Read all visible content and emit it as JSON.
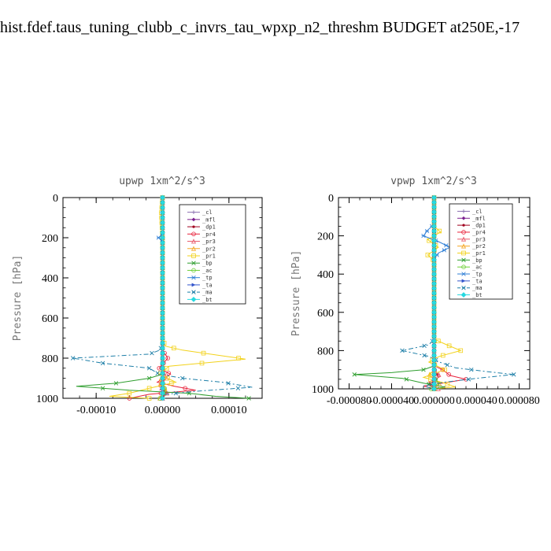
{
  "page": {
    "title": "hist.fdef.taus_tuning_clubb_c_invrs_tau_wpxp_n2_threshm  BUDGET at250E,-17"
  },
  "chart_data": [
    {
      "type": "line",
      "title": "upwp   1xm^2/s^3",
      "ylabel": "Pressure [hPa]",
      "xlabel": "",
      "ylim": [
        1000,
        0
      ],
      "y_ticks": [
        "0",
        "200",
        "400",
        "600",
        "800",
        "1000"
      ],
      "xlim": [
        -0.00015,
        0.00015
      ],
      "x_ticks": [
        {
          "value": -0.0001,
          "label": "-0.00010"
        },
        {
          "value": 0,
          "label": "0.00000"
        },
        {
          "value": 0.0001,
          "label": "0.00010"
        }
      ],
      "legend_position": "top-right",
      "series": [
        {
          "name": "_cl",
          "color": "#8a6fb0",
          "marker": "cross",
          "dash": "",
          "points": [
            [
              0,
              0
            ],
            [
              0,
              1000
            ]
          ]
        },
        {
          "name": "_mfl",
          "color": "#7b1f8f",
          "marker": "diamond",
          "dash": "",
          "points": [
            [
              0,
              0
            ],
            [
              0,
              1000
            ]
          ]
        },
        {
          "name": "_dp1",
          "color": "#a0001e",
          "marker": "dot",
          "dash": "",
          "points": [
            [
              0,
              0
            ],
            [
              0,
              900
            ],
            [
              -2e-06,
              940
            ],
            [
              4e-06,
              970
            ],
            [
              0,
              1000
            ]
          ]
        },
        {
          "name": "_pr4",
          "color": "#e8233c",
          "marker": "circle",
          "dash": "",
          "points": [
            [
              0,
              0
            ],
            [
              0,
              760
            ],
            [
              8e-06,
              800
            ],
            [
              -5e-06,
              850
            ],
            [
              1.2e-05,
              880
            ],
            [
              -8e-06,
              920
            ],
            [
              1.8e-05,
              940
            ],
            [
              5e-05,
              960
            ],
            [
              -2e-05,
              980
            ],
            [
              -5e-05,
              1000
            ]
          ]
        },
        {
          "name": "_pr3",
          "color": "#e85a6a",
          "marker": "triangle",
          "dash": "",
          "points": [
            [
              0,
              0
            ],
            [
              0,
              860
            ],
            [
              6e-06,
              900
            ],
            [
              -6e-06,
              940
            ],
            [
              8e-06,
              970
            ],
            [
              0,
              1000
            ]
          ]
        },
        {
          "name": "_pr2",
          "color": "#f5a623",
          "marker": "triangle",
          "dash": "",
          "points": [
            [
              0,
              0
            ],
            [
              0,
              880
            ],
            [
              -4e-06,
              920
            ],
            [
              6e-06,
              960
            ],
            [
              -4e-06,
              1000
            ]
          ]
        },
        {
          "name": "_pr1",
          "color": "#f2d21b",
          "marker": "square",
          "dash": "",
          "points": [
            [
              0,
              0
            ],
            [
              -2e-06,
              80
            ],
            [
              0,
              200
            ],
            [
              0,
              700
            ],
            [
              4e-06,
              740
            ],
            [
              3e-05,
              760
            ],
            [
              0.000125,
              805
            ],
            [
              1e-05,
              840
            ],
            [
              -5e-06,
              880
            ],
            [
              2e-05,
              920
            ],
            [
              -2e-05,
              950
            ],
            [
              -5e-05,
              975
            ],
            [
              -8e-05,
              990
            ],
            [
              -2e-05,
              1000
            ]
          ]
        },
        {
          "name": "_bp",
          "color": "#2e9e2e",
          "marker": "xcross",
          "dash": "",
          "points": [
            [
              0,
              0
            ],
            [
              0,
              880
            ],
            [
              -2e-05,
              900
            ],
            [
              -7e-05,
              925
            ],
            [
              -0.00013,
              940
            ],
            [
              -5e-05,
              960
            ],
            [
              4e-05,
              975
            ],
            [
              8e-05,
              990
            ],
            [
              0.00013,
              1000
            ]
          ]
        },
        {
          "name": "_ac",
          "color": "#6fd13a",
          "marker": "circle",
          "dash": "",
          "points": [
            [
              0,
              0
            ],
            [
              0,
              920
            ],
            [
              4e-06,
              960
            ],
            [
              -4e-06,
              1000
            ]
          ]
        },
        {
          "name": "_tp",
          "color": "#2f7fd6",
          "marker": "asterisk",
          "dash": "",
          "points": [
            [
              0,
              0
            ],
            [
              0,
              180
            ],
            [
              -6e-06,
              200
            ],
            [
              0,
              220
            ],
            [
              0,
              1000
            ]
          ]
        },
        {
          "name": "_ta",
          "color": "#3355cc",
          "marker": "arrow",
          "dash": "",
          "points": [
            [
              0,
              0
            ],
            [
              0,
              1000
            ]
          ]
        },
        {
          "name": "_ma",
          "color": "#1e7fa8",
          "marker": "xcross",
          "dash": "6,3,2,3",
          "points": [
            [
              0,
              0
            ],
            [
              0,
              730
            ],
            [
              -4e-06,
              760
            ],
            [
              -2e-05,
              780
            ],
            [
              -0.000135,
              800
            ],
            [
              -9e-05,
              825
            ],
            [
              -2e-05,
              850
            ],
            [
              -5e-06,
              880
            ],
            [
              3e-05,
              900
            ],
            [
              9e-05,
              920
            ],
            [
              0.000135,
              945
            ],
            [
              5e-05,
              965
            ],
            [
              5e-06,
              980
            ],
            [
              0,
              1000
            ]
          ]
        },
        {
          "name": "_bt",
          "color": "#26d9e0",
          "marker": "bigdiamond",
          "dash": "",
          "points": [
            [
              0,
              0
            ],
            [
              0,
              1000
            ]
          ]
        }
      ]
    },
    {
      "type": "line",
      "title": "vpwp   1xm^2/s^3",
      "ylabel": "Pressure [hPa]",
      "xlabel": "",
      "ylim": [
        1000,
        0
      ],
      "y_ticks": [
        "0",
        "200",
        "400",
        "600",
        "800",
        "1000"
      ],
      "xlim": [
        -9e-05,
        9e-05
      ],
      "x_ticks": [
        {
          "value": -8e-05,
          "label": "-0.000080"
        },
        {
          "value": -4e-05,
          "label": "-0.000040"
        },
        {
          "value": 0,
          "label": "0.000000"
        },
        {
          "value": 4e-05,
          "label": "0.000040"
        },
        {
          "value": 8e-05,
          "label": "0.000080"
        }
      ],
      "legend_position": "top-right",
      "series": [
        {
          "name": "_cl",
          "color": "#8a6fb0",
          "marker": "cross",
          "dash": "",
          "points": [
            [
              0,
              0
            ],
            [
              0,
              1000
            ]
          ]
        },
        {
          "name": "_mfl",
          "color": "#7b1f8f",
          "marker": "diamond",
          "dash": "",
          "points": [
            [
              0,
              0
            ],
            [
              0,
              1000
            ]
          ]
        },
        {
          "name": "_dp1",
          "color": "#a0001e",
          "marker": "dot",
          "dash": "",
          "points": [
            [
              0,
              0
            ],
            [
              0,
              880
            ],
            [
              4e-06,
              940
            ],
            [
              -4e-06,
              975
            ],
            [
              0,
              1000
            ]
          ]
        },
        {
          "name": "_pr4",
          "color": "#e8233c",
          "marker": "circle",
          "dash": "",
          "points": [
            [
              0,
              0
            ],
            [
              0,
              880
            ],
            [
              8e-06,
              900
            ],
            [
              1.5e-05,
              930
            ],
            [
              3e-05,
              950
            ],
            [
              8e-06,
              970
            ],
            [
              -1e-05,
              985
            ],
            [
              0,
              1000
            ]
          ]
        },
        {
          "name": "_pr3",
          "color": "#e85a6a",
          "marker": "triangle",
          "dash": "",
          "points": [
            [
              0,
              0
            ],
            [
              0,
              900
            ],
            [
              6e-06,
              935
            ],
            [
              -5e-06,
              965
            ],
            [
              4e-06,
              1000
            ]
          ]
        },
        {
          "name": "_pr2",
          "color": "#f5a623",
          "marker": "triangle",
          "dash": "",
          "points": [
            [
              0,
              0
            ],
            [
              0,
              900
            ],
            [
              -5e-06,
              930
            ],
            [
              6e-06,
              970
            ],
            [
              0,
              1000
            ]
          ]
        },
        {
          "name": "_pr1",
          "color": "#f2d21b",
          "marker": "square",
          "dash": "",
          "points": [
            [
              0,
              0
            ],
            [
              0,
              150
            ],
            [
              6e-06,
              180
            ],
            [
              -6e-06,
              220
            ],
            [
              4e-06,
              260
            ],
            [
              -6e-06,
              300
            ],
            [
              0,
              330
            ],
            [
              0,
              740
            ],
            [
              1.2e-05,
              770
            ],
            [
              2.5e-05,
              800
            ],
            [
              5e-06,
              830
            ],
            [
              -5e-06,
              860
            ],
            [
              1e-05,
              900
            ],
            [
              -1e-05,
              940
            ],
            [
              1e-05,
              970
            ],
            [
              2e-05,
              990
            ],
            [
              0,
              1000
            ]
          ]
        },
        {
          "name": "_bp",
          "color": "#2e9e2e",
          "marker": "xcross",
          "dash": "",
          "points": [
            [
              0,
              0
            ],
            [
              0,
              880
            ],
            [
              -1e-05,
              900
            ],
            [
              -4e-05,
              915
            ],
            [
              -7.5e-05,
              925
            ],
            [
              -3e-05,
              945
            ],
            [
              -1e-05,
              970
            ],
            [
              1e-05,
              990
            ],
            [
              0,
              1000
            ]
          ]
        },
        {
          "name": "_ac",
          "color": "#6fd13a",
          "marker": "circle",
          "dash": "",
          "points": [
            [
              0,
              0
            ],
            [
              0,
              940
            ],
            [
              4e-06,
              970
            ],
            [
              -3e-06,
              1000
            ]
          ]
        },
        {
          "name": "_tp",
          "color": "#2f7fd6",
          "marker": "asterisk",
          "dash": "",
          "points": [
            [
              0,
              0
            ],
            [
              0,
              140
            ],
            [
              -6e-06,
              170
            ],
            [
              -1e-05,
              200
            ],
            [
              4e-06,
              230
            ],
            [
              1.5e-05,
              260
            ],
            [
              4e-06,
              290
            ],
            [
              0,
              320
            ],
            [
              0,
              1000
            ]
          ]
        },
        {
          "name": "_ta",
          "color": "#3355cc",
          "marker": "arrow",
          "dash": "",
          "points": [
            [
              0,
              0
            ],
            [
              0,
              1000
            ]
          ]
        },
        {
          "name": "_ma",
          "color": "#1e7fa8",
          "marker": "xcross",
          "dash": "6,3,2,3",
          "points": [
            [
              0,
              0
            ],
            [
              0,
              740
            ],
            [
              -5e-06,
              770
            ],
            [
              -3e-05,
              800
            ],
            [
              -5e-06,
              830
            ],
            [
              5e-06,
              860
            ],
            [
              2e-05,
              890
            ],
            [
              5e-05,
              910
            ],
            [
              7.5e-05,
              925
            ],
            [
              4e-05,
              945
            ],
            [
              1e-05,
              965
            ],
            [
              -1e-05,
              985
            ],
            [
              0,
              1000
            ]
          ]
        },
        {
          "name": "_bt",
          "color": "#26d9e0",
          "marker": "bigdiamond",
          "dash": "",
          "points": [
            [
              0,
              0
            ],
            [
              0,
              1000
            ]
          ]
        }
      ]
    }
  ]
}
